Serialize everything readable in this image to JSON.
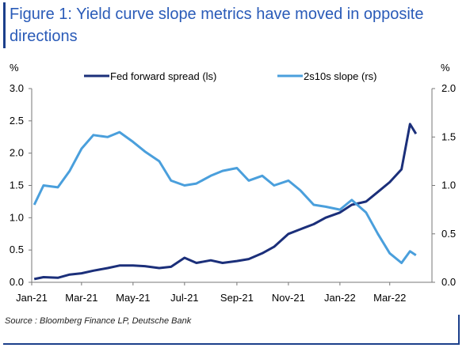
{
  "title": "Figure 1: Yield curve slope metrics have moved in opposite directions",
  "source": "Source : Bloomberg Finance LP, Deutsche Bank",
  "chart_data": {
    "type": "line",
    "title": "Figure 1: Yield curve slope metrics have moved in opposite directions",
    "left_axis_unit": "%",
    "right_axis_unit": "%",
    "left_ylim": [
      0.0,
      3.0
    ],
    "right_ylim": [
      0.0,
      2.0
    ],
    "left_ticks": [
      "0.0",
      "0.5",
      "1.0",
      "1.5",
      "2.0",
      "2.5",
      "3.0"
    ],
    "right_ticks": [
      "0.0",
      "0.5",
      "1.0",
      "1.5",
      "2.0"
    ],
    "x_tick_labels": [
      "Jan-21",
      "Mar-21",
      "May-21",
      "Jul-21",
      "Sep-21",
      "Nov-21",
      "Jan-22",
      "Mar-22"
    ],
    "x": [
      "2021-01-04",
      "2021-01-15",
      "2021-02-01",
      "2021-02-15",
      "2021-03-01",
      "2021-03-15",
      "2021-04-01",
      "2021-04-15",
      "2021-05-01",
      "2021-05-15",
      "2021-06-01",
      "2021-06-15",
      "2021-07-01",
      "2021-07-15",
      "2021-08-01",
      "2021-08-15",
      "2021-09-01",
      "2021-09-15",
      "2021-10-01",
      "2021-10-15",
      "2021-11-01",
      "2021-11-15",
      "2021-12-01",
      "2021-12-15",
      "2022-01-01",
      "2022-01-15",
      "2022-02-01",
      "2022-02-15",
      "2022-03-01",
      "2022-03-15",
      "2022-03-25",
      "2022-04-01"
    ],
    "series": [
      {
        "name": "Fed forward spread (ls)",
        "axis": "left",
        "color": "#1b2f7a",
        "values": [
          0.05,
          0.08,
          0.07,
          0.12,
          0.14,
          0.18,
          0.22,
          0.26,
          0.26,
          0.25,
          0.22,
          0.24,
          0.38,
          0.3,
          0.34,
          0.3,
          0.33,
          0.36,
          0.45,
          0.55,
          0.75,
          0.82,
          0.9,
          1.0,
          1.08,
          1.2,
          1.25,
          1.4,
          1.55,
          1.75,
          2.45,
          2.3
        ]
      },
      {
        "name": "2s10s slope (rs)",
        "axis": "right",
        "color": "#4a9fdc",
        "values": [
          0.8,
          1.0,
          0.98,
          1.15,
          1.38,
          1.52,
          1.5,
          1.55,
          1.45,
          1.35,
          1.25,
          1.05,
          1.0,
          1.02,
          1.1,
          1.15,
          1.18,
          1.05,
          1.1,
          1.0,
          1.05,
          0.95,
          0.8,
          0.78,
          0.75,
          0.85,
          0.72,
          0.5,
          0.3,
          0.2,
          0.32,
          0.28
        ]
      }
    ],
    "legend_position": "top-center",
    "grid": false
  }
}
